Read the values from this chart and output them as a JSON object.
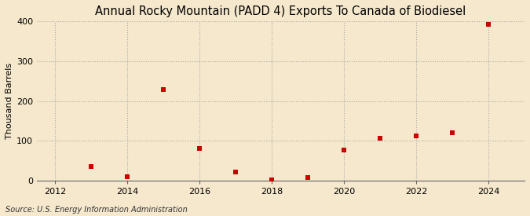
{
  "title": "Annual Rocky Mountain (PADD 4) Exports To Canada of Biodiesel",
  "ylabel": "Thousand Barrels",
  "source": "Source: U.S. Energy Information Administration",
  "years": [
    2013,
    2014,
    2015,
    2016,
    2017,
    2018,
    2019,
    2020,
    2021,
    2022,
    2023,
    2024
  ],
  "values": [
    35,
    10,
    228,
    80,
    22,
    2,
    7,
    77,
    107,
    112,
    120,
    393
  ],
  "xlim": [
    2011.5,
    2025.0
  ],
  "ylim": [
    0,
    400
  ],
  "yticks": [
    0,
    100,
    200,
    300,
    400
  ],
  "xticks": [
    2012,
    2014,
    2016,
    2018,
    2020,
    2022,
    2024
  ],
  "marker_color": "#cc0000",
  "marker": "s",
  "marker_size": 4,
  "background_color": "#f5e8cc",
  "grid_color": "#aaaaaa",
  "title_fontsize": 10.5,
  "label_fontsize": 8,
  "tick_fontsize": 8,
  "source_fontsize": 7
}
